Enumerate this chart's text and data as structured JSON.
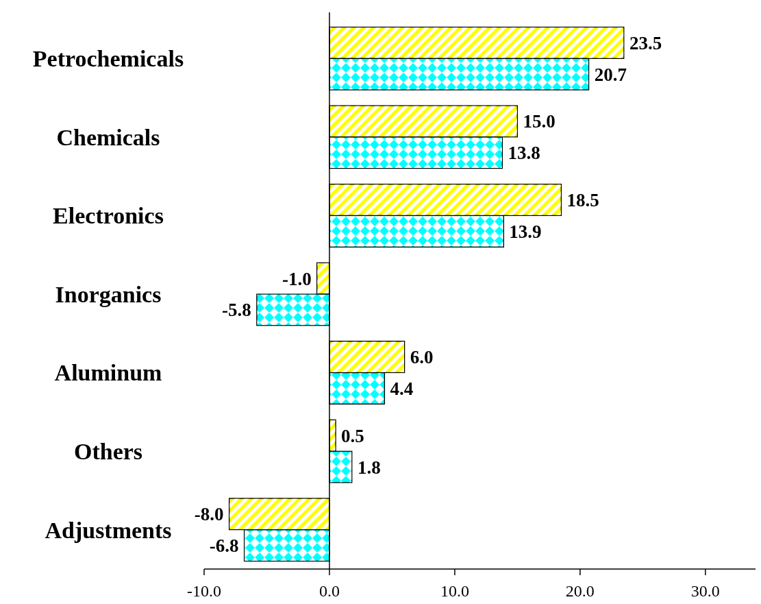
{
  "chart_data": {
    "type": "bar",
    "orientation": "horizontal",
    "categories": [
      "Petrochemicals",
      "Chemicals",
      "Electronics",
      "Inorganics",
      "Aluminum",
      "Others",
      "Adjustments"
    ],
    "series": [
      {
        "color": "#ffff00",
        "values": [
          23.5,
          15.0,
          18.5,
          -1.0,
          6.0,
          0.5,
          -8.0
        ],
        "value_labels": [
          "23.5",
          "15.0",
          "18.5",
          "-1.0",
          "6.0",
          "0.5",
          "-8.0"
        ]
      },
      {
        "color": "#00ffff",
        "values": [
          20.7,
          13.8,
          13.9,
          -5.8,
          4.4,
          1.8,
          -6.8
        ],
        "value_labels": [
          "20.7",
          "13.8",
          "13.9",
          "-5.8",
          "4.4",
          "1.8",
          "-6.8"
        ]
      }
    ],
    "xlim": [
      -10,
      34
    ],
    "xticks": [
      {
        "value": -10,
        "label": "-10.0"
      },
      {
        "value": 0,
        "label": "0.0"
      },
      {
        "value": 10,
        "label": "10.0"
      },
      {
        "value": 20,
        "label": "20.0"
      },
      {
        "value": 30,
        "label": "30.0"
      }
    ]
  }
}
